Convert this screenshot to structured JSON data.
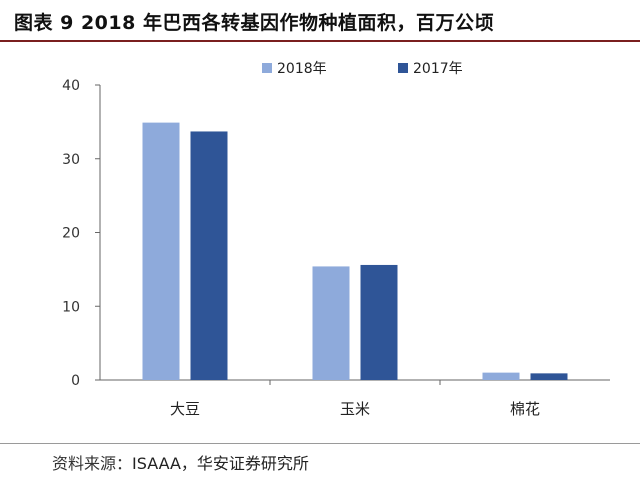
{
  "header": {
    "title": "图表 9 2018 年巴西各转基因作物种植面积，百万公顷"
  },
  "footer": {
    "source_label": "资料来源：",
    "source_text": "ISAAA，华安证券研究所"
  },
  "colors": {
    "series_2018": "#8eaadb",
    "series_2017": "#2f5597",
    "axis": "#666666",
    "title_rule": "#7a1f1f"
  },
  "chart_data": {
    "type": "bar",
    "title": "",
    "xlabel": "",
    "ylabel": "",
    "categories": [
      "大豆",
      "玉米",
      "棉花"
    ],
    "series": [
      {
        "name": "2018年",
        "values": [
          34.9,
          15.4,
          1.0
        ]
      },
      {
        "name": "2017年",
        "values": [
          33.7,
          15.6,
          0.9
        ]
      }
    ],
    "ylim": [
      0,
      40
    ],
    "yticks": [
      "0",
      "10",
      "20",
      "30",
      "40"
    ],
    "grid": false,
    "legend_position": "top-right"
  }
}
